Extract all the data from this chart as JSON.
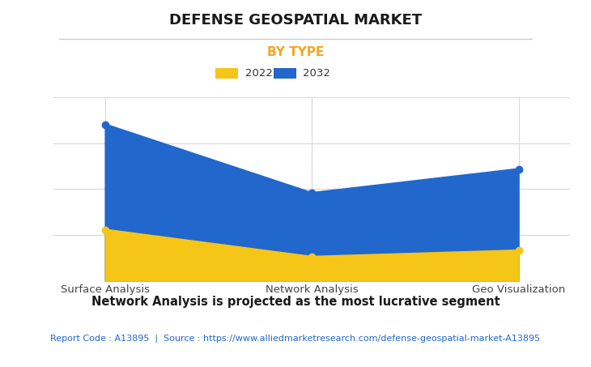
{
  "title": "DEFENSE GEOSPATIAL MARKET",
  "subtitle": "BY TYPE",
  "subtitle_color": "#F5A623",
  "categories": [
    "Surface Analysis",
    "Network Analysis",
    "Geo Visualization"
  ],
  "series_2022": [
    3.2,
    1.5,
    1.9
  ],
  "series_2032": [
    9.8,
    5.5,
    7.0
  ],
  "color_2022": "#F5C518",
  "color_2032": "#2267CC",
  "legend_labels": [
    "2022",
    "2032"
  ],
  "footer_bold": "Network Analysis is projected as the most lucrative segment",
  "footer_source": "Report Code : A13895  |  Source : https://www.alliedmarketresearch.com/defense-geospatial-market-A13895",
  "footer_source_color": "#2267CC",
  "background_color": "#FFFFFF",
  "grid_color": "#D8D8D8",
  "ylim": [
    0,
    11.5
  ],
  "title_fontsize": 13,
  "subtitle_fontsize": 11,
  "tick_fontsize": 9.5,
  "legend_fontsize": 9.5,
  "footer_fontsize": 10.5,
  "source_fontsize": 8,
  "marker_size": 6,
  "linewidth": 1.8,
  "alpha_fill": 1.0
}
